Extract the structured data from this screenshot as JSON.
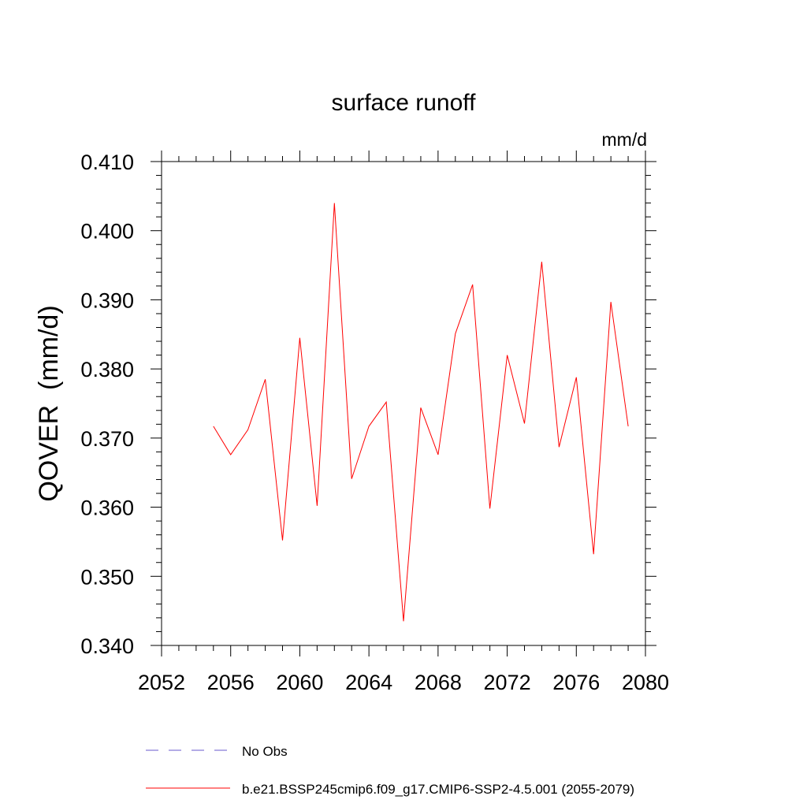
{
  "chart_data": {
    "type": "line",
    "title": "surface runoff",
    "units_label": "mm/d",
    "ylabel": "QOVER  (mm/d)",
    "xlabel": "",
    "xlim": [
      2052,
      2080
    ],
    "ylim": [
      0.34,
      0.41
    ],
    "x_ticks": [
      2052,
      2056,
      2060,
      2064,
      2068,
      2072,
      2076,
      2080
    ],
    "x_tick_labels": [
      "2052",
      "2056",
      "2060",
      "2064",
      "2068",
      "2072",
      "2076",
      "2080"
    ],
    "y_ticks": [
      0.34,
      0.35,
      0.36,
      0.37,
      0.38,
      0.39,
      0.4,
      0.41
    ],
    "y_tick_labels": [
      "0.340",
      "0.350",
      "0.360",
      "0.370",
      "0.380",
      "0.390",
      "0.400",
      "0.410"
    ],
    "grid": false,
    "legend_position": "bottom",
    "legend": [
      {
        "label": "No Obs",
        "color": "#6a5acd",
        "style": "dashed"
      },
      {
        "label": "b.e21.BSSP245cmip6.f09_g17.CMIP6-SSP2-4.5.001 (2055-2079)",
        "color": "#ff0000",
        "style": "solid"
      }
    ],
    "series": [
      {
        "name": "b.e21.BSSP245cmip6.f09_g17.CMIP6-SSP2-4.5.001 (2055-2079)",
        "color": "#ff0000",
        "x": [
          2055,
          2056,
          2057,
          2058,
          2059,
          2060,
          2061,
          2062,
          2063,
          2064,
          2065,
          2066,
          2067,
          2068,
          2069,
          2070,
          2071,
          2072,
          2073,
          2074,
          2075,
          2076,
          2077,
          2078,
          2079
        ],
        "values": [
          0.3717,
          0.3676,
          0.3712,
          0.3785,
          0.3552,
          0.3845,
          0.3602,
          0.404,
          0.3641,
          0.3717,
          0.3752,
          0.3435,
          0.3744,
          0.3676,
          0.3851,
          0.3922,
          0.3598,
          0.382,
          0.3721,
          0.3955,
          0.3687,
          0.3788,
          0.3532,
          0.3897,
          0.3717
        ]
      }
    ]
  }
}
